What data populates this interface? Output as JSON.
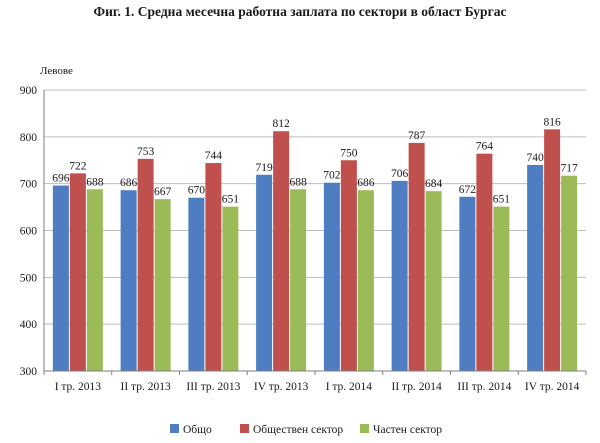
{
  "chart_data": {
    "type": "bar",
    "title": "Фиг. 1. Средна месечна работна заплата по сектори в област Бургас",
    "ylabel": "Левове",
    "xlabel": "",
    "ylim": [
      300,
      900
    ],
    "yticks": [
      300,
      400,
      500,
      600,
      700,
      800,
      900
    ],
    "grid": true,
    "legend_position": "bottom",
    "categories": [
      "I тр. 2013",
      "II тр. 2013",
      "III тр. 2013",
      "IV тр. 2013",
      "I тр. 2014",
      "II тр. 2014",
      "III тр. 2014",
      "IV тр. 2014"
    ],
    "series": [
      {
        "name": "Общо",
        "color": "#4f7dc1",
        "values": [
          696,
          686,
          670,
          719,
          702,
          706,
          672,
          740
        ]
      },
      {
        "name": "Обществен сектор",
        "color": "#c0504d",
        "values": [
          722,
          753,
          744,
          812,
          750,
          787,
          764,
          816
        ]
      },
      {
        "name": "Частен сектор",
        "color": "#9bbb59",
        "values": [
          688,
          667,
          651,
          688,
          686,
          684,
          651,
          717
        ]
      }
    ]
  }
}
